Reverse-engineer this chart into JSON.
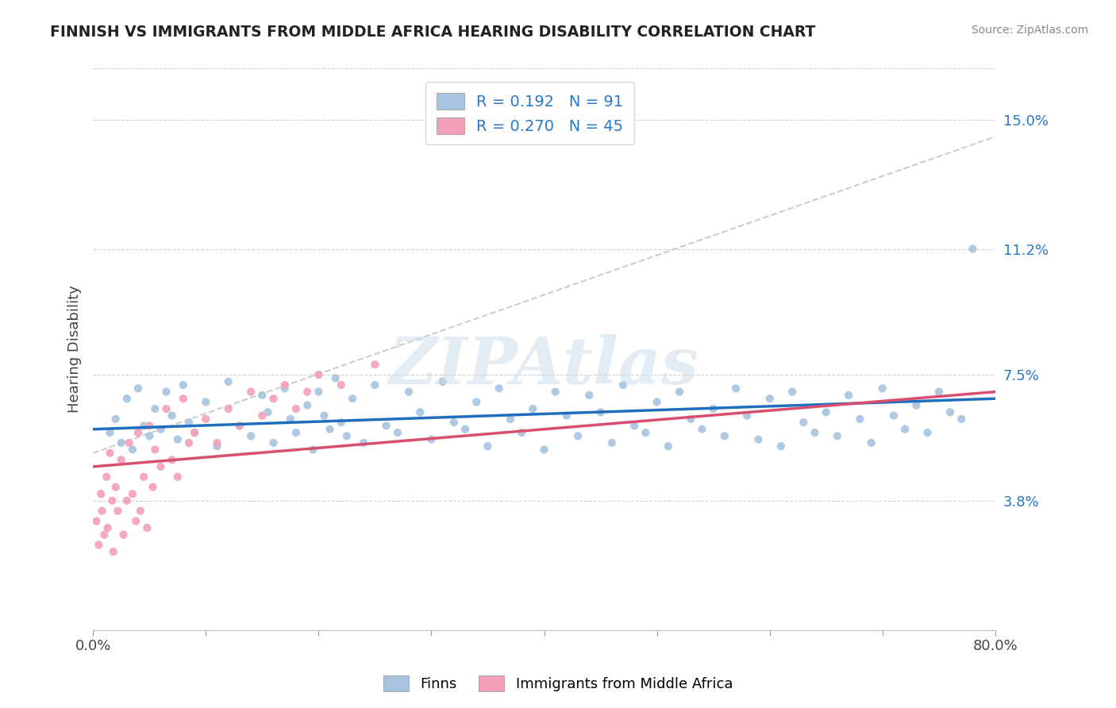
{
  "title": "FINNISH VS IMMIGRANTS FROM MIDDLE AFRICA HEARING DISABILITY CORRELATION CHART",
  "source": "Source: ZipAtlas.com",
  "ylabel": "Hearing Disability",
  "xlim": [
    0.0,
    80.0
  ],
  "ylim": [
    0.0,
    16.5
  ],
  "ytick_positions": [
    3.8,
    7.5,
    11.2,
    15.0
  ],
  "ytick_labels": [
    "3.8%",
    "7.5%",
    "11.2%",
    "15.0%"
  ],
  "finn_color": "#a8c4e0",
  "immigrant_color": "#f4a0b8",
  "finn_line_color": "#1f6fbe",
  "immigrant_line_color": "#d94f70",
  "dashed_line_color": "#c0c0c0",
  "legend_R_finn": "0.192",
  "legend_N_finn": "91",
  "legend_R_imm": "0.270",
  "legend_N_imm": "45",
  "watermark": "ZIPAtlas",
  "watermark_color": "#ccdde8",
  "finn_scatter_x": [
    1.5,
    2.0,
    2.5,
    3.0,
    3.5,
    4.0,
    4.5,
    5.0,
    5.5,
    6.0,
    6.5,
    7.0,
    7.5,
    8.0,
    8.5,
    9.0,
    10.0,
    11.0,
    12.0,
    13.0,
    14.0,
    15.0,
    15.5,
    16.0,
    17.0,
    17.5,
    18.0,
    19.0,
    19.5,
    20.0,
    20.5,
    21.0,
    21.5,
    22.0,
    22.5,
    23.0,
    24.0,
    25.0,
    26.0,
    27.0,
    28.0,
    29.0,
    30.0,
    31.0,
    32.0,
    33.0,
    34.0,
    35.0,
    36.0,
    37.0,
    38.0,
    39.0,
    40.0,
    41.0,
    42.0,
    43.0,
    44.0,
    45.0,
    46.0,
    47.0,
    48.0,
    49.0,
    50.0,
    51.0,
    52.0,
    53.0,
    54.0,
    55.0,
    56.0,
    57.0,
    58.0,
    59.0,
    60.0,
    61.0,
    62.0,
    63.0,
    64.0,
    65.0,
    66.0,
    67.0,
    68.0,
    69.0,
    70.0,
    71.0,
    72.0,
    73.0,
    74.0,
    75.0,
    76.0,
    77.0,
    78.0
  ],
  "finn_scatter_y": [
    5.8,
    6.2,
    5.5,
    6.8,
    5.3,
    7.1,
    6.0,
    5.7,
    6.5,
    5.9,
    7.0,
    6.3,
    5.6,
    7.2,
    6.1,
    5.8,
    6.7,
    5.4,
    7.3,
    6.0,
    5.7,
    6.9,
    6.4,
    5.5,
    7.1,
    6.2,
    5.8,
    6.6,
    5.3,
    7.0,
    6.3,
    5.9,
    7.4,
    6.1,
    5.7,
    6.8,
    5.5,
    7.2,
    6.0,
    5.8,
    7.0,
    6.4,
    5.6,
    7.3,
    6.1,
    5.9,
    6.7,
    5.4,
    7.1,
    6.2,
    5.8,
    6.5,
    5.3,
    7.0,
    6.3,
    5.7,
    6.9,
    6.4,
    5.5,
    7.2,
    6.0,
    5.8,
    6.7,
    5.4,
    7.0,
    6.2,
    5.9,
    6.5,
    5.7,
    7.1,
    6.3,
    5.6,
    6.8,
    5.4,
    7.0,
    6.1,
    5.8,
    6.4,
    5.7,
    6.9,
    6.2,
    5.5,
    7.1,
    6.3,
    5.9,
    6.6,
    5.8,
    7.0,
    6.4,
    6.2,
    11.2
  ],
  "imm_scatter_x": [
    0.3,
    0.5,
    0.7,
    0.8,
    1.0,
    1.2,
    1.3,
    1.5,
    1.7,
    1.8,
    2.0,
    2.2,
    2.5,
    2.7,
    3.0,
    3.2,
    3.5,
    3.8,
    4.0,
    4.2,
    4.5,
    4.8,
    5.0,
    5.3,
    5.5,
    6.0,
    6.5,
    7.0,
    7.5,
    8.0,
    8.5,
    9.0,
    10.0,
    11.0,
    12.0,
    13.0,
    14.0,
    15.0,
    16.0,
    17.0,
    18.0,
    19.0,
    20.0,
    22.0,
    25.0
  ],
  "imm_scatter_y": [
    3.2,
    2.5,
    4.0,
    3.5,
    2.8,
    4.5,
    3.0,
    5.2,
    3.8,
    2.3,
    4.2,
    3.5,
    5.0,
    2.8,
    3.8,
    5.5,
    4.0,
    3.2,
    5.8,
    3.5,
    4.5,
    3.0,
    6.0,
    4.2,
    5.3,
    4.8,
    6.5,
    5.0,
    4.5,
    6.8,
    5.5,
    5.8,
    6.2,
    5.5,
    6.5,
    6.0,
    7.0,
    6.3,
    6.8,
    7.2,
    6.5,
    7.0,
    7.5,
    7.2,
    7.8
  ],
  "finn_line_x": [
    0,
    80
  ],
  "finn_line_y": [
    5.9,
    6.8
  ],
  "imm_line_x": [
    0,
    80
  ],
  "imm_line_y": [
    4.8,
    7.0
  ],
  "dashed_line_x": [
    0,
    80
  ],
  "dashed_line_y": [
    5.2,
    14.5
  ]
}
